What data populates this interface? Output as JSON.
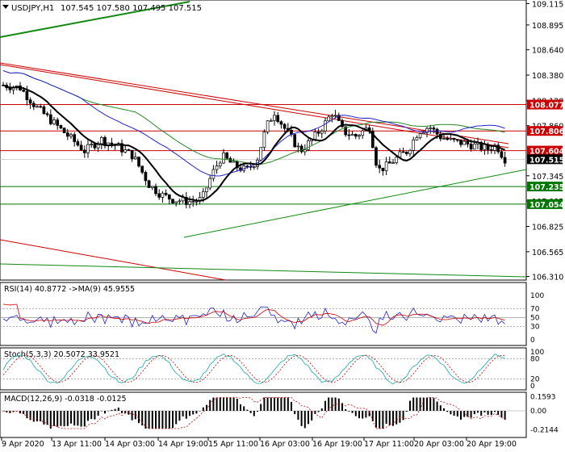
{
  "header": {
    "symbol": "USDJPY,H1",
    "ohlc": "107.545 107.580 107.495 107.515"
  },
  "price_axis": {
    "ticks": [
      "109.115",
      "108.895",
      "108.640",
      "108.380",
      "108.120",
      "107.860",
      "107.345",
      "107.085",
      "106.825",
      "106.565",
      "106.310"
    ]
  },
  "price_labels": [
    {
      "value": "108.077",
      "color": "#cc0000"
    },
    {
      "value": "107.806",
      "color": "#cc0000"
    },
    {
      "value": "107.604",
      "color": "#cc0000"
    },
    {
      "value": "107.515",
      "color": "#000000"
    },
    {
      "value": "107.235",
      "color": "#007700"
    },
    {
      "value": "107.054",
      "color": "#007700"
    }
  ],
  "time_axis": {
    "labels": [
      "9 Apr 2020",
      "13 Apr 11:00",
      "14 Apr 03:00",
      "14 Apr 19:00",
      "15 Apr 11:00",
      "16 Apr 03:00",
      "16 Apr 19:00",
      "17 Apr 11:00",
      "20 Apr 03:00",
      "20 Apr 19:00"
    ]
  },
  "rsi": {
    "title": "RSI(14) 40.8772  ->MA(9) 45.9555",
    "ticks": [
      "100",
      "70",
      "50",
      "30",
      "0"
    ]
  },
  "stoch": {
    "title": "Stoch(5,3,3) 20.5072 33.9521",
    "ticks": [
      "100",
      "80",
      "20",
      "0"
    ]
  },
  "macd": {
    "title": "MACD(12,26,9) -0.0318 -0.0125",
    "ticks": [
      "0.1593",
      "0.00",
      "-0.2144"
    ]
  },
  "colors": {
    "bull_candle": "#ffffff",
    "bear_candle": "#000000",
    "red_line": "#cc0000",
    "green_line": "#007700",
    "ma_fast": "#000000",
    "ma_blue": "#2222cc",
    "ma_green": "#228822"
  }
}
